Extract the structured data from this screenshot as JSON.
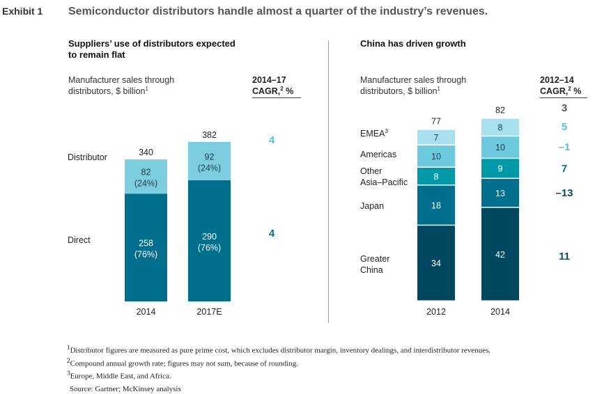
{
  "exhibit_label": "Exhibit 1",
  "headline": "Semiconductor distributors handle almost a quarter of the industry’s revenues.",
  "left_panel": {
    "title_line1": "Suppliers’ use of distributors expected",
    "title_line2": "to remain flat",
    "axis_line1": "Manufacturer sales through",
    "axis_line2": "distributors, $ billion",
    "axis_sup": "1",
    "cagr_line1": "2014–17",
    "cagr_line2": "CAGR,",
    "cagr_sup": "2",
    "cagr_unit": " %",
    "cat_distributor": "Distributor",
    "cat_direct": "Direct",
    "cagr_distributor": "4",
    "cagr_direct": "4"
  },
  "right_panel": {
    "title": "China has driven growth",
    "axis_line1": "Manufacturer sales through",
    "axis_line2": "distributors, $ billion",
    "axis_sup": "1",
    "cagr_line1": "2012–14",
    "cagr_line2": "CAGR,",
    "cagr_sup": "2",
    "cagr_unit": " %",
    "cat_emea": "EMEA",
    "cat_emea_sup": "3",
    "cat_americas": "Americas",
    "cat_other1": "Other",
    "cat_other2": "Asia–Pacific",
    "cat_japan": "Japan",
    "cat_china1": "Greater",
    "cat_china2": "China",
    "cagr_total": "3",
    "cagr_emea": "5",
    "cagr_americas": "–1",
    "cagr_other": "7",
    "cagr_japan": "–13",
    "cagr_china": "11"
  },
  "footnotes": {
    "fn1_sup": "1",
    "fn1": "Distributor figures are measured as pure prime cost, which excludes distributor margin, inventory dealings, and interdistributor revenues.",
    "fn2_sup": "2",
    "fn2": "Compound annual growth rate; figures may not sum, because of rounding.",
    "fn3_sup": "3",
    "fn3": "Europe, Middle East, and Africa.",
    "source": "Source: Gartner; McKinsey analysis"
  },
  "colors": {
    "distributor": "#7dcde0",
    "direct": "#006f8e",
    "emea": "#a9e0ee",
    "americas": "#6dc9dd",
    "other_apac": "#0099a8",
    "japan": "#006f8e",
    "china": "#004860",
    "cagr_light": "#4cc3dd",
    "cagr_dark": "#006f8e",
    "cagr_darker": "#0a4d63",
    "cagr_grey": "#555555"
  },
  "chart_data": [
    {
      "type": "bar",
      "stacked": true,
      "categories": [
        "2014",
        "2017E"
      ],
      "totals": [
        "340",
        "382"
      ],
      "series": [
        {
          "name": "Direct",
          "values": [
            258,
            290
          ],
          "labels": [
            "(76%)",
            "(76%)"
          ]
        },
        {
          "name": "Distributor",
          "values": [
            82,
            92
          ],
          "labels": [
            "(24%)",
            "(24%)"
          ]
        }
      ]
    },
    {
      "type": "bar",
      "stacked": true,
      "categories": [
        "2012",
        "2014"
      ],
      "totals": [
        "77",
        "82"
      ],
      "series": [
        {
          "name": "Greater China",
          "values": [
            34,
            42
          ]
        },
        {
          "name": "Japan",
          "values": [
            18,
            13
          ]
        },
        {
          "name": "Other Asia–Pacific",
          "values": [
            8,
            9
          ]
        },
        {
          "name": "Americas",
          "values": [
            10,
            10
          ]
        },
        {
          "name": "EMEA",
          "values": [
            7,
            8
          ]
        }
      ]
    }
  ]
}
